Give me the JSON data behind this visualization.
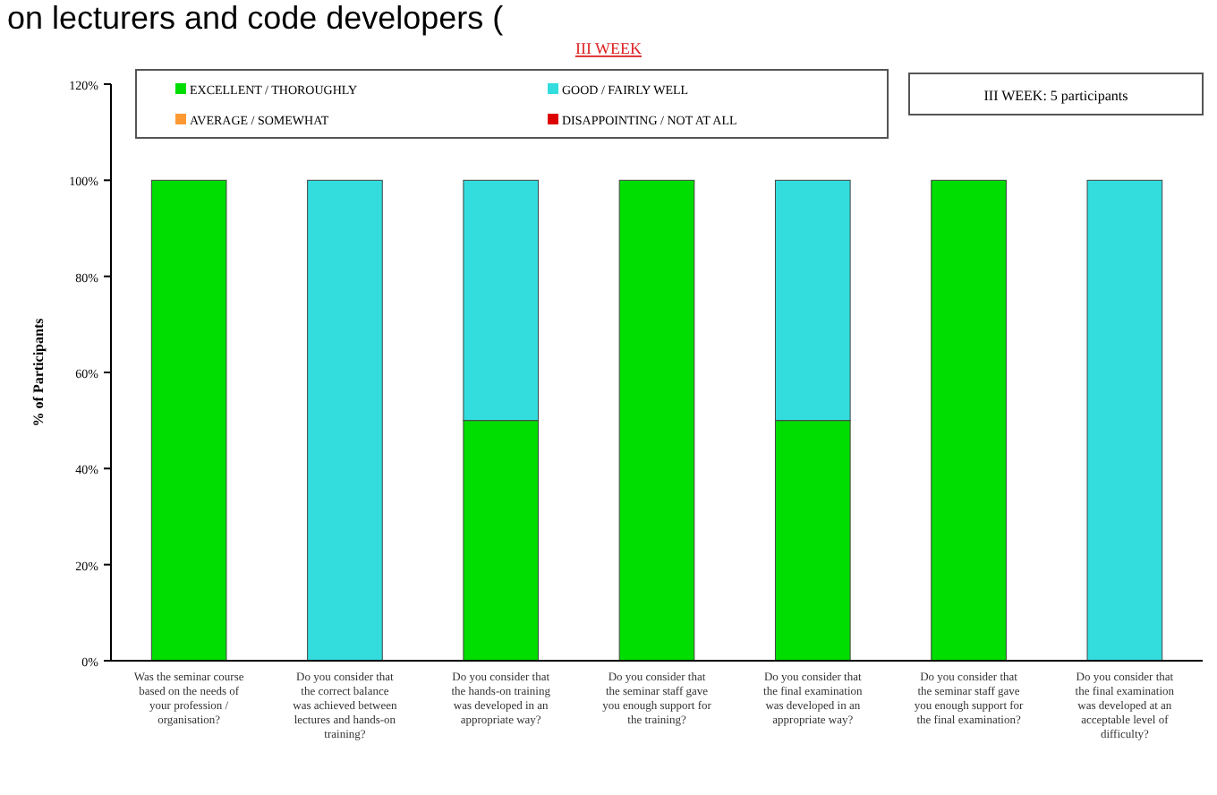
{
  "chart_data": {
    "type": "bar",
    "stacked": true,
    "title": "III  WEEK",
    "ylabel": "% of Participants",
    "annotations": [
      "on lecturers and code developers (",
      "III  WEEK: 5 participants"
    ],
    "categories": [
      "Was the seminar course based on the needs of your profession / organisation?",
      "Do you consider that the correct balance was achieved between lectures and hands-on training?",
      "Do you consider that the hands-on training was developed in an appropriate way?",
      "Do you consider that the seminar staff gave you enough support for the training?",
      "Do you consider that the final examination was developed in an appropriate way?",
      "Do you consider that the seminar staff gave you enough support for the final examination?",
      "Do you consider that the final examination was developed at an acceptable level of difficulty?"
    ],
    "series": [
      {
        "name": "EXCELLENT / THOROUGHLY",
        "color": "#00dd00",
        "values": [
          100,
          0,
          50,
          100,
          50,
          100,
          0
        ]
      },
      {
        "name": "GOOD / FAIRLY WELL",
        "color": "#33dddd",
        "values": [
          0,
          100,
          50,
          0,
          50,
          0,
          100
        ]
      },
      {
        "name": "AVERAGE / SOMEWHAT",
        "color": "#ff9933",
        "values": [
          0,
          0,
          0,
          0,
          0,
          0,
          0
        ]
      },
      {
        "name": "DISAPPOINTING / NOT AT ALL",
        "color": "#dd0000",
        "values": [
          0,
          0,
          0,
          0,
          0,
          0,
          0
        ]
      }
    ],
    "ylim": [
      0,
      120
    ],
    "yticks": [
      {
        "value": 0,
        "label": "0%"
      },
      {
        "value": 20,
        "label": "20%"
      },
      {
        "value": 40,
        "label": "40%"
      },
      {
        "value": 60,
        "label": "60%"
      },
      {
        "value": 80,
        "label": "80%"
      },
      {
        "value": 100,
        "label": "100%"
      },
      {
        "value": 120,
        "label": "120%"
      }
    ],
    "grid": false,
    "legend": "top"
  }
}
